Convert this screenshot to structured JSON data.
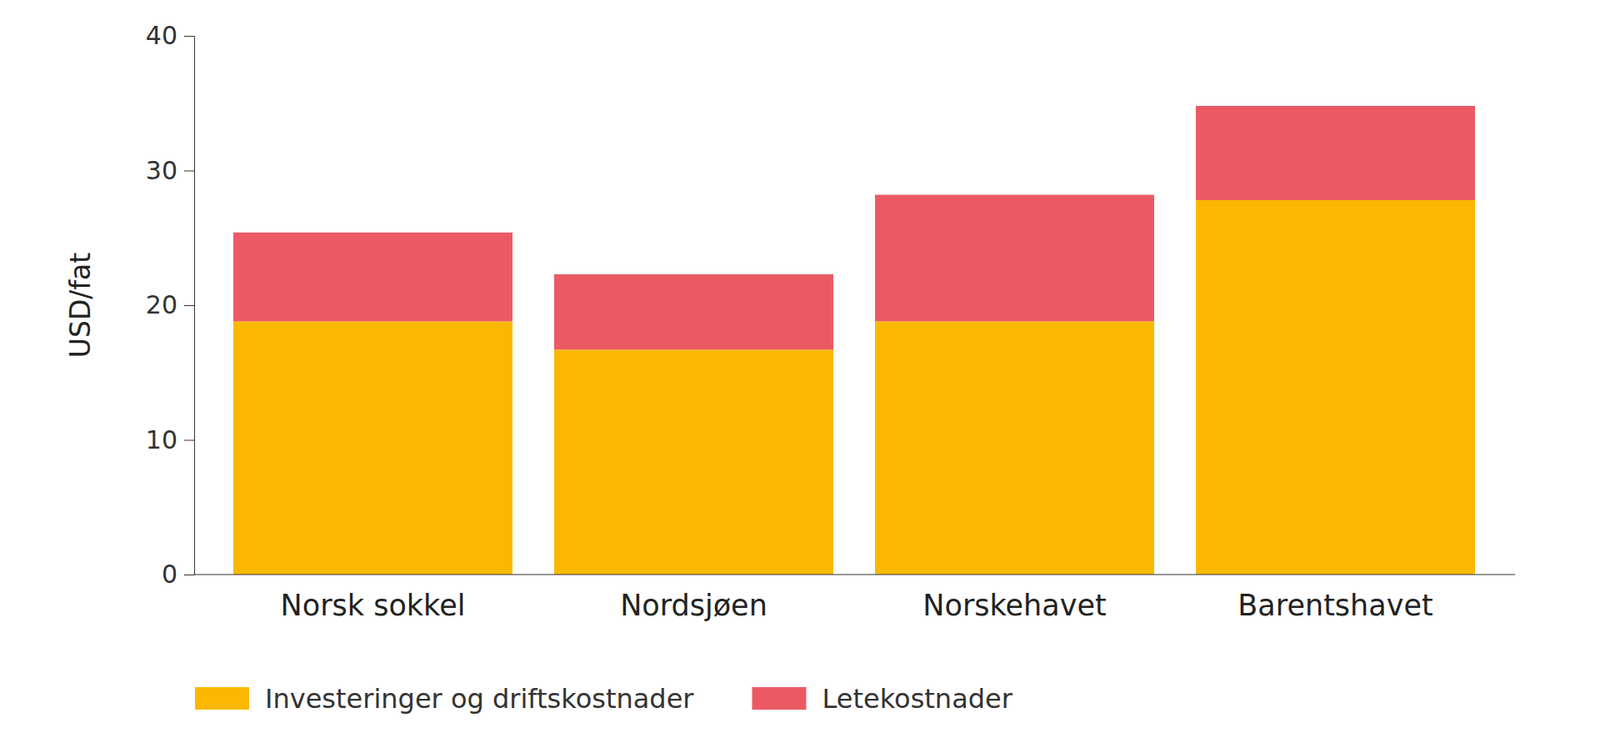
{
  "chart_data": {
    "type": "bar",
    "stacked": true,
    "legend": "bottom",
    "y_label": "USD/fat",
    "categories": [
      "Norsk sokkel",
      "Nordsjøen",
      "Norskehavet",
      "Barentshavet"
    ],
    "series": [
      {
        "name": "Investeringer og driftskostnader",
        "color": "#fab900",
        "values": [
          18.8,
          16.7,
          18.8,
          27.8
        ]
      },
      {
        "name": "Letekostnader",
        "color": "#eb5a64",
        "values": [
          6.6,
          5.6,
          9.4,
          7.0
        ]
      }
    ],
    "ylim": [
      0,
      40
    ],
    "yticks": [
      0,
      10,
      20,
      30,
      40
    ],
    "grid": false
  }
}
